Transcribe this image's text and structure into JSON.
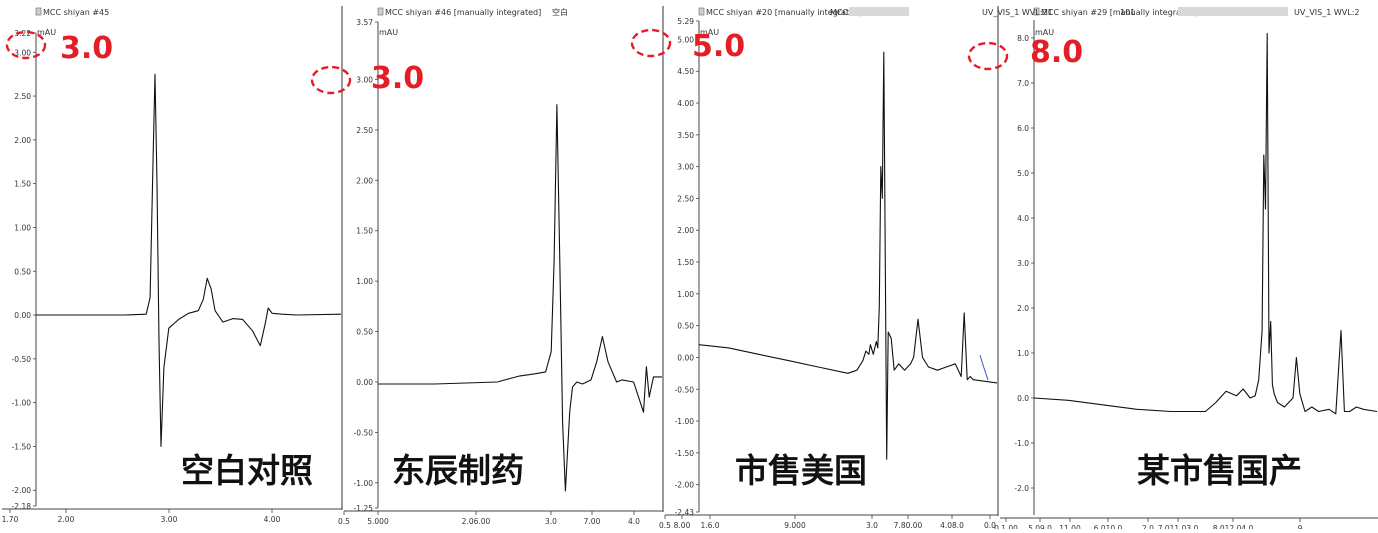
{
  "annotation_color": "#e41e26",
  "trace_color": "#111111",
  "chart_data": [
    {
      "type": "line",
      "header": "MCC shiyan #45",
      "extra": "",
      "unit": "mAU",
      "y_ticks": [
        "3.22",
        "3.00",
        "2.50",
        "2.00",
        "1.50",
        "1.00",
        "0.50",
        "0.00",
        "-0.50",
        "-1.00",
        "-1.50",
        "-2.00",
        "-2.18"
      ],
      "x_ticks": [
        "1.70",
        "2.00",
        "3.00",
        "4.00"
      ],
      "ylim": [
        -2.18,
        3.22
      ],
      "xlim": [
        1.7,
        4.8
      ],
      "annotation": "3.0",
      "label": "空白对照",
      "series": [
        {
          "x": [
            1.7,
            2.6,
            2.82,
            2.86,
            2.89,
            2.91,
            2.93,
            2.95,
            2.97,
            3.0,
            3.05,
            3.15,
            3.25,
            3.35,
            3.4,
            3.44,
            3.48,
            3.52,
            3.6,
            3.7,
            3.8,
            3.9,
            3.98,
            4.03,
            4.06,
            4.1,
            4.2,
            4.35,
            4.8
          ],
          "y": [
            0.0,
            0.0,
            0.01,
            0.2,
            1.8,
            2.75,
            1.5,
            -0.3,
            -1.5,
            -0.6,
            -0.15,
            -0.05,
            0.02,
            0.05,
            0.18,
            0.42,
            0.3,
            0.05,
            -0.08,
            -0.04,
            -0.05,
            -0.18,
            -0.35,
            -0.1,
            0.08,
            0.02,
            0.01,
            0.0,
            0.01
          ]
        }
      ]
    },
    {
      "type": "line",
      "header": "MCC shiyan #46 [manually integrated]",
      "extra": "空白",
      "unit": "mAU",
      "y_ticks": [
        "3.57",
        "3.00",
        "2.50",
        "2.00",
        "1.50",
        "1.00",
        "0.50",
        "0.00",
        "-0.50",
        "-1.00",
        "-1.25"
      ],
      "x_ticks": [
        "0.5",
        "5.000",
        "2.06.00",
        "3.0",
        "7.00",
        "4.0"
      ],
      "ylim": [
        -1.25,
        3.57
      ],
      "xlim": [
        0,
        10
      ],
      "annotation": "3.0",
      "label": "东辰制药",
      "series": [
        {
          "x": [
            0,
            2.0,
            4.2,
            4.6,
            5.0,
            5.5,
            5.9,
            6.1,
            6.2,
            6.3,
            6.4,
            6.5,
            6.6,
            6.75,
            6.85,
            7.0,
            7.2,
            7.5,
            7.7,
            7.9,
            8.1,
            8.4,
            8.6,
            9.0,
            9.35,
            9.45,
            9.55,
            9.7,
            10
          ],
          "y": [
            -0.02,
            -0.02,
            0.0,
            0.03,
            0.06,
            0.08,
            0.1,
            0.3,
            1.2,
            2.75,
            1.2,
            -0.4,
            -1.08,
            -0.3,
            -0.05,
            0.0,
            -0.02,
            0.02,
            0.2,
            0.45,
            0.2,
            0.0,
            0.02,
            0.0,
            -0.3,
            0.15,
            -0.15,
            0.05,
            0.05
          ]
        }
      ]
    },
    {
      "type": "line",
      "header": "MCC shiyan #20 [manually integrated]",
      "extra": "MCC",
      "unit": "mAU",
      "y_ticks": [
        "5.29",
        "5.00",
        "4.50",
        "4.00",
        "3.50",
        "3.00",
        "2.50",
        "2.00",
        "1.50",
        "1.00",
        "0.50",
        "0.00",
        "-0.50",
        "-1.00",
        "-1.50",
        "-2.00",
        "-2.43"
      ],
      "x_ticks": [
        "0.5",
        "8.00",
        "1.6.0",
        "9.000",
        "3.0",
        "7.80.00",
        "4.08.0",
        "0.0"
      ],
      "ylim": [
        -2.43,
        5.29
      ],
      "xlim": [
        0,
        10
      ],
      "annotation": "5.0",
      "label": "市售美国",
      "series": [
        {
          "x": [
            0,
            1.0,
            2.0,
            3.0,
            4.0,
            5.0,
            5.3,
            5.5,
            5.6,
            5.7,
            5.75,
            5.85,
            5.95,
            6.0,
            6.05,
            6.1,
            6.15,
            6.2,
            6.3,
            6.35,
            6.45,
            6.55,
            6.7,
            6.9,
            7.1,
            7.2,
            7.35,
            7.5,
            7.7,
            8.0,
            8.3,
            8.6,
            8.8,
            8.9,
            9.0,
            9.1,
            9.2,
            10
          ],
          "y": [
            0.2,
            0.15,
            0.05,
            -0.05,
            -0.15,
            -0.25,
            -0.2,
            -0.05,
            0.1,
            0.05,
            0.2,
            0.05,
            0.25,
            0.15,
            0.8,
            3.0,
            2.5,
            4.8,
            -1.6,
            0.4,
            0.3,
            -0.2,
            -0.1,
            -0.2,
            -0.1,
            0.0,
            0.6,
            0.0,
            -0.15,
            -0.2,
            -0.15,
            -0.1,
            -0.3,
            0.7,
            -0.35,
            -0.3,
            -0.35,
            -0.4
          ]
        }
      ]
    },
    {
      "type": "line",
      "header": "MCC shiyan #29 [manually integrated]",
      "extra": "101",
      "right_header": "UV_VIS_1 WVL:2",
      "overlay_header": "UV_VIS_1 WVL:21",
      "unit": "mAU",
      "y_ticks": [
        "8.0",
        "7.0",
        "6.0",
        "5.0",
        "4.0",
        "3.0",
        "2.0",
        "1.0",
        "0.0",
        "-1.0",
        "-2.0"
      ],
      "x_ticks": [
        "0.1.00",
        "5.09.0",
        "11.00",
        "6.010.0",
        "2.0",
        "7.011.03.0",
        "8.012.04.0",
        "9"
      ],
      "ylim": [
        -2.6,
        8.4
      ],
      "xlim": [
        0,
        10
      ],
      "annotation": "8.0",
      "label": "某市售国产",
      "series": [
        {
          "x": [
            0,
            1.0,
            2.0,
            3.0,
            4.0,
            5.0,
            5.3,
            5.6,
            5.9,
            6.1,
            6.3,
            6.45,
            6.55,
            6.65,
            6.7,
            6.75,
            6.8,
            6.85,
            6.9,
            6.95,
            7.0,
            7.1,
            7.3,
            7.55,
            7.65,
            7.75,
            7.9,
            8.1,
            8.3,
            8.6,
            8.8,
            8.95,
            9.05,
            9.2,
            9.4,
            9.6,
            10
          ],
          "y": [
            0.0,
            -0.05,
            -0.15,
            -0.25,
            -0.3,
            -0.3,
            -0.1,
            0.15,
            0.05,
            0.2,
            0.0,
            0.05,
            0.4,
            1.5,
            5.4,
            4.2,
            8.1,
            1.0,
            1.7,
            0.3,
            0.1,
            -0.1,
            -0.2,
            0.0,
            0.9,
            0.1,
            -0.3,
            -0.2,
            -0.3,
            -0.25,
            -0.35,
            1.5,
            -0.3,
            -0.3,
            -0.2,
            -0.25,
            -0.3
          ]
        }
      ]
    }
  ]
}
